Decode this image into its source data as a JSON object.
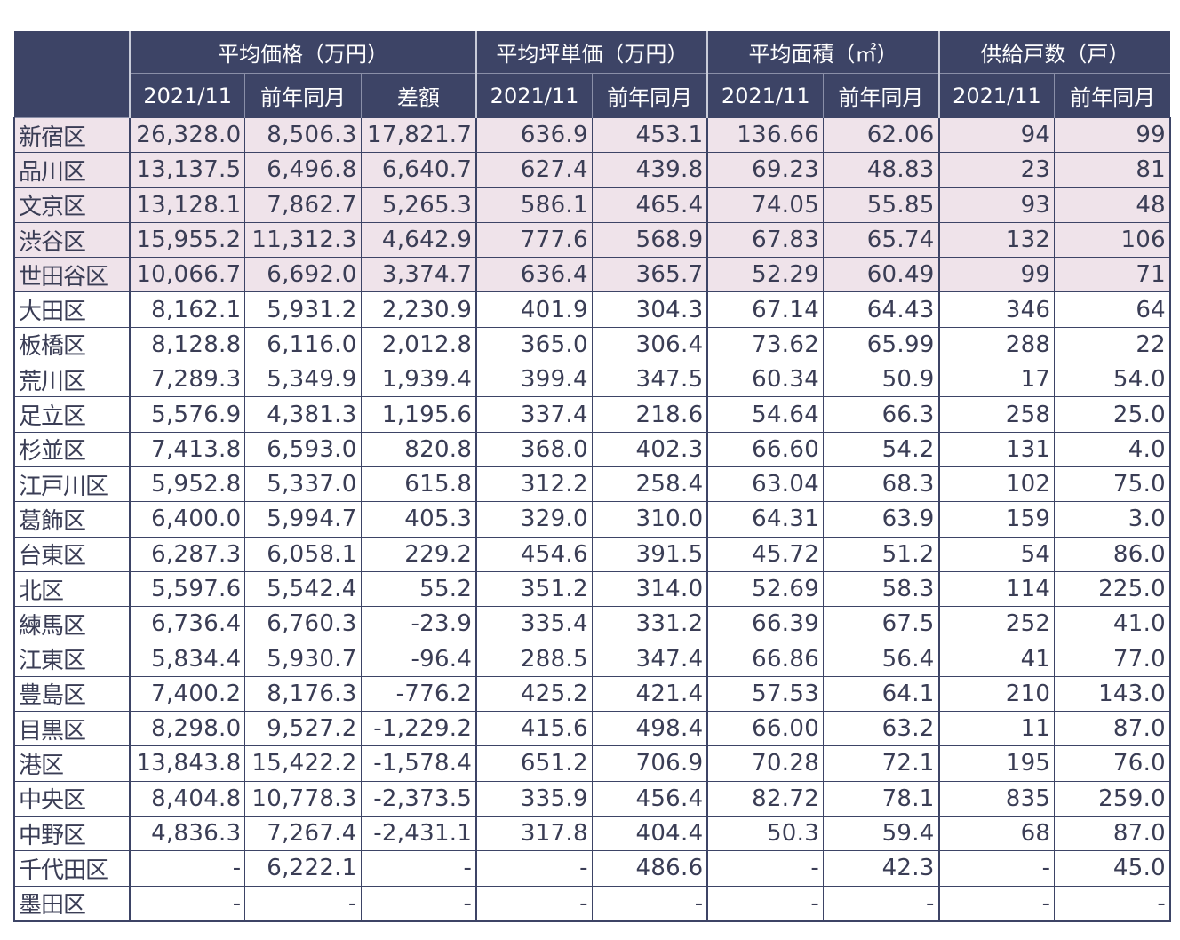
{
  "header": {
    "groups": [
      "平均価格（万円）",
      "平均坪単価（万円）",
      "平均面積（㎡）",
      "供給戸数（戸）"
    ],
    "sub": [
      "2021/11",
      "前年同月",
      "差額",
      "2021/11",
      "前年同月",
      "2021/11",
      "前年同月",
      "2021/11",
      "前年同月"
    ]
  },
  "rows": [
    {
      "name": "新宿区",
      "v": [
        "26,328.0",
        "8,506.3",
        "17,821.7",
        "636.9",
        "453.1",
        "136.66",
        "62.06",
        "94",
        "99"
      ],
      "hl": true
    },
    {
      "name": "品川区",
      "v": [
        "13,137.5",
        "6,496.8",
        "6,640.7",
        "627.4",
        "439.8",
        "69.23",
        "48.83",
        "23",
        "81"
      ],
      "hl": true
    },
    {
      "name": "文京区",
      "v": [
        "13,128.1",
        "7,862.7",
        "5,265.3",
        "586.1",
        "465.4",
        "74.05",
        "55.85",
        "93",
        "48"
      ],
      "hl": true
    },
    {
      "name": "渋谷区",
      "v": [
        "15,955.2",
        "11,312.3",
        "4,642.9",
        "777.6",
        "568.9",
        "67.83",
        "65.74",
        "132",
        "106"
      ],
      "hl": true
    },
    {
      "name": "世田谷区",
      "v": [
        "10,066.7",
        "6,692.0",
        "3,374.7",
        "636.4",
        "365.7",
        "52.29",
        "60.49",
        "99",
        "71"
      ],
      "hl": true
    },
    {
      "name": "大田区",
      "v": [
        "8,162.1",
        "5,931.2",
        "2,230.9",
        "401.9",
        "304.3",
        "67.14",
        "64.43",
        "346",
        "64"
      ],
      "hl": false
    },
    {
      "name": "板橋区",
      "v": [
        "8,128.8",
        "6,116.0",
        "2,012.8",
        "365.0",
        "306.4",
        "73.62",
        "65.99",
        "288",
        "22"
      ],
      "hl": false
    },
    {
      "name": "荒川区",
      "v": [
        "7,289.3",
        "5,349.9",
        "1,939.4",
        "399.4",
        "347.5",
        "60.34",
        "50.9",
        "17",
        "54.0"
      ],
      "hl": false
    },
    {
      "name": "足立区",
      "v": [
        "5,576.9",
        "4,381.3",
        "1,195.6",
        "337.4",
        "218.6",
        "54.64",
        "66.3",
        "258",
        "25.0"
      ],
      "hl": false
    },
    {
      "name": "杉並区",
      "v": [
        "7,413.8",
        "6,593.0",
        "820.8",
        "368.0",
        "402.3",
        "66.60",
        "54.2",
        "131",
        "4.0"
      ],
      "hl": false
    },
    {
      "name": "江戸川区",
      "v": [
        "5,952.8",
        "5,337.0",
        "615.8",
        "312.2",
        "258.4",
        "63.04",
        "68.3",
        "102",
        "75.0"
      ],
      "hl": false
    },
    {
      "name": "葛飾区",
      "v": [
        "6,400.0",
        "5,994.7",
        "405.3",
        "329.0",
        "310.0",
        "64.31",
        "63.9",
        "159",
        "3.0"
      ],
      "hl": false
    },
    {
      "name": "台東区",
      "v": [
        "6,287.3",
        "6,058.1",
        "229.2",
        "454.6",
        "391.5",
        "45.72",
        "51.2",
        "54",
        "86.0"
      ],
      "hl": false
    },
    {
      "name": "北区",
      "v": [
        "5,597.6",
        "5,542.4",
        "55.2",
        "351.2",
        "314.0",
        "52.69",
        "58.3",
        "114",
        "225.0"
      ],
      "hl": false
    },
    {
      "name": "練馬区",
      "v": [
        "6,736.4",
        "6,760.3",
        "-23.9",
        "335.4",
        "331.2",
        "66.39",
        "67.5",
        "252",
        "41.0"
      ],
      "hl": false
    },
    {
      "name": "江東区",
      "v": [
        "5,834.4",
        "5,930.7",
        "-96.4",
        "288.5",
        "347.4",
        "66.86",
        "56.4",
        "41",
        "77.0"
      ],
      "hl": false
    },
    {
      "name": "豊島区",
      "v": [
        "7,400.2",
        "8,176.3",
        "-776.2",
        "425.2",
        "421.4",
        "57.53",
        "64.1",
        "210",
        "143.0"
      ],
      "hl": false
    },
    {
      "name": "目黒区",
      "v": [
        "8,298.0",
        "9,527.2",
        "-1,229.2",
        "415.6",
        "498.4",
        "66.00",
        "63.2",
        "11",
        "87.0"
      ],
      "hl": false
    },
    {
      "name": "港区",
      "v": [
        "13,843.8",
        "15,422.2",
        "-1,578.4",
        "651.2",
        "706.9",
        "70.28",
        "72.1",
        "195",
        "76.0"
      ],
      "hl": false
    },
    {
      "name": "中央区",
      "v": [
        "8,404.8",
        "10,778.3",
        "-2,373.5",
        "335.9",
        "456.4",
        "82.72",
        "78.1",
        "835",
        "259.0"
      ],
      "hl": false
    },
    {
      "name": "中野区",
      "v": [
        "4,836.3",
        "7,267.4",
        "-2,431.1",
        "317.8",
        "404.4",
        "50.3",
        "59.4",
        "68",
        "87.0"
      ],
      "hl": false
    },
    {
      "name": "千代田区",
      "v": [
        "-",
        "6,222.1",
        "-",
        "-",
        "486.6",
        "-",
        "42.3",
        "-",
        "45.0"
      ],
      "hl": false
    },
    {
      "name": "墨田区",
      "v": [
        "-",
        "-",
        "-",
        "-",
        "-",
        "-",
        "-",
        "-",
        "-"
      ],
      "hl": false
    }
  ]
}
